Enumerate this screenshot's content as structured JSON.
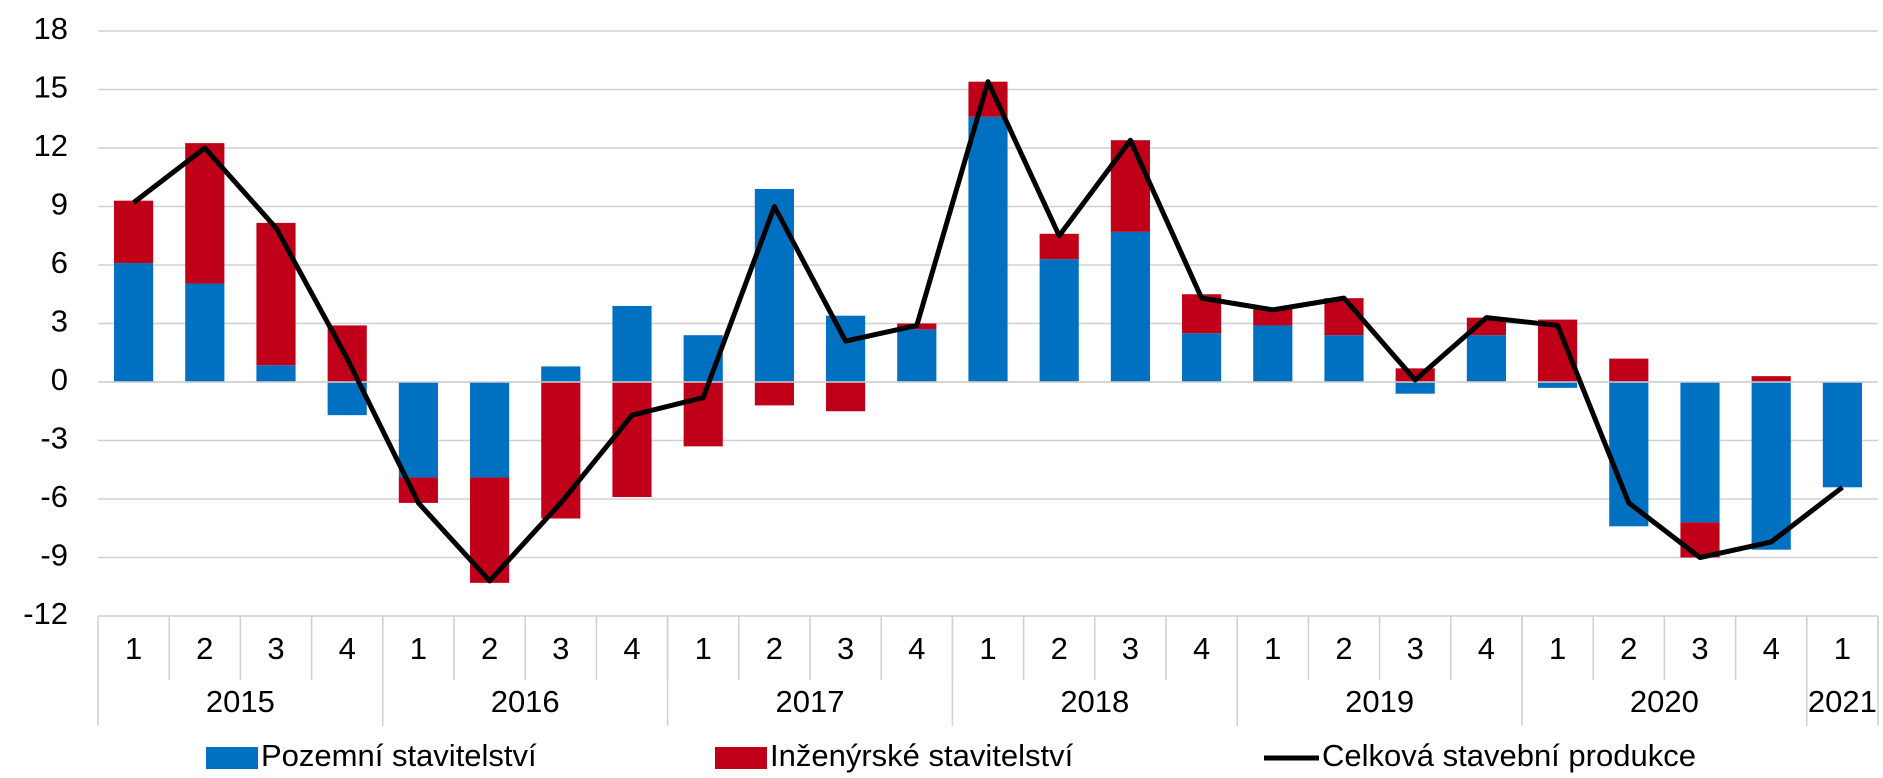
{
  "chart_data": {
    "type": "stacked_bar_line",
    "categories": [
      "1",
      "2",
      "3",
      "4",
      "1",
      "2",
      "3",
      "4",
      "1",
      "2",
      "3",
      "4",
      "1",
      "2",
      "3",
      "4",
      "1",
      "2",
      "3",
      "4",
      "1",
      "2",
      "3",
      "4",
      "1"
    ],
    "groups": [
      {
        "label": "2015",
        "span": 4
      },
      {
        "label": "2016",
        "span": 4
      },
      {
        "label": "2017",
        "span": 4
      },
      {
        "label": "2018",
        "span": 4
      },
      {
        "label": "2019",
        "span": 4
      },
      {
        "label": "2020",
        "span": 4
      },
      {
        "label": "2021",
        "span": 1
      }
    ],
    "series": [
      {
        "name": "Pozemní stavitelství",
        "color": "#0070c0",
        "kind": "bar",
        "values": [
          6.1,
          5.05,
          0.86,
          -1.7,
          -4.9,
          -4.9,
          0.8,
          3.9,
          2.4,
          9.9,
          3.4,
          2.7,
          13.6,
          6.3,
          7.7,
          2.5,
          2.9,
          2.4,
          -0.6,
          2.4,
          -0.3,
          -7.4,
          -7.2,
          -8.6,
          -5.4
        ]
      },
      {
        "name": "Inženýrské stavitelství",
        "color": "#c00018",
        "kind": "bar",
        "values": [
          3.2,
          7.2,
          7.3,
          2.9,
          -1.3,
          -5.4,
          -7.0,
          -5.9,
          -3.3,
          -1.2,
          -1.5,
          0.3,
          1.8,
          1.3,
          4.7,
          2.0,
          0.9,
          1.9,
          0.7,
          0.9,
          3.2,
          1.2,
          -1.8,
          0.3,
          0
        ]
      },
      {
        "name": "Celková stavební produkce",
        "color": "#000000",
        "kind": "line",
        "values": [
          9.2,
          12.0,
          7.9,
          1.2,
          -6.2,
          -10.2,
          -6.2,
          -1.7,
          -0.8,
          9.0,
          2.1,
          2.9,
          15.4,
          7.5,
          12.4,
          4.3,
          3.7,
          4.3,
          0.1,
          3.3,
          2.9,
          -6.2,
          -9.0,
          -8.2,
          -5.4
        ]
      }
    ],
    "ylim": [
      -12,
      18
    ],
    "yticks": [
      -12,
      -9,
      -6,
      -3,
      0,
      3,
      6,
      9,
      12,
      15,
      18
    ],
    "grid": true,
    "legend": "bottom"
  }
}
